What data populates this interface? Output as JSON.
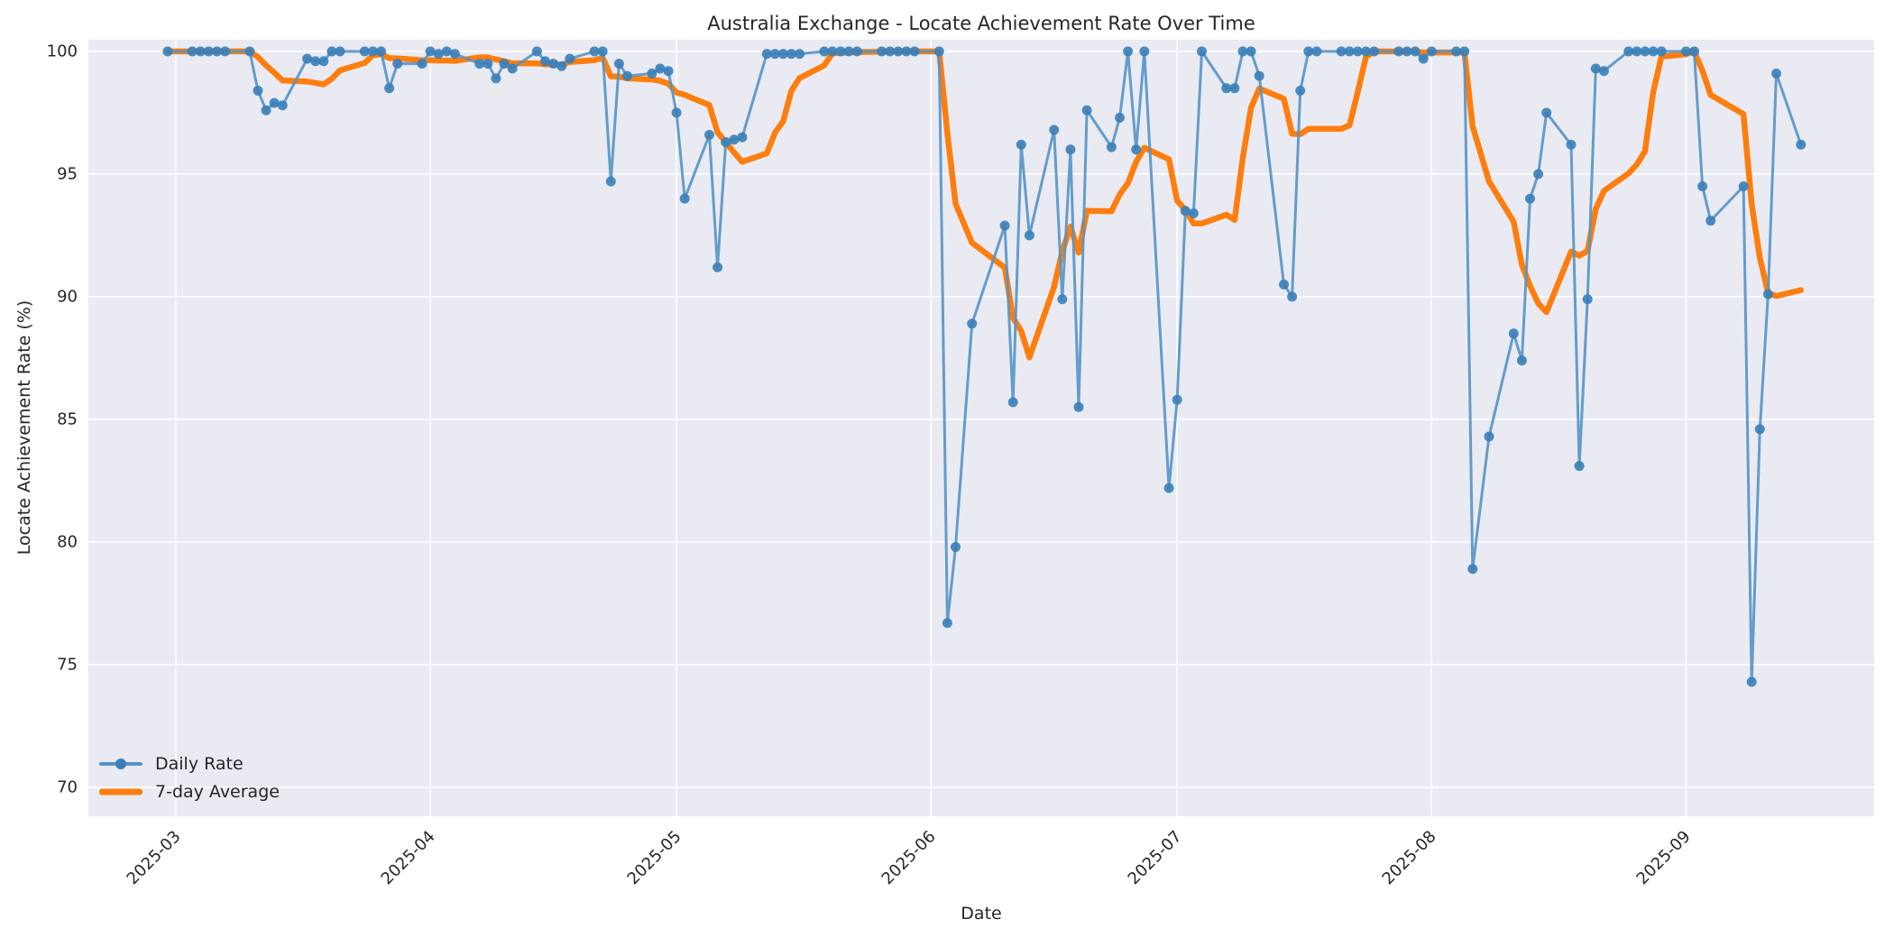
{
  "title": "Australia Exchange - Locate Achievement Rate Over Time",
  "x_axis": {
    "label": "Date",
    "ticks": [
      {
        "label": "2025-03",
        "date": "2025-03-01"
      },
      {
        "label": "2025-04",
        "date": "2025-04-01"
      },
      {
        "label": "2025-05",
        "date": "2025-05-01"
      },
      {
        "label": "2025-06",
        "date": "2025-06-01"
      },
      {
        "label": "2025-07",
        "date": "2025-07-01"
      },
      {
        "label": "2025-08",
        "date": "2025-08-01"
      },
      {
        "label": "2025-09",
        "date": "2025-09-01"
      }
    ]
  },
  "y_axis": {
    "label": "Locate Achievement Rate (%)",
    "ticks": [
      70,
      75,
      80,
      85,
      90,
      95,
      100
    ]
  },
  "legend": {
    "items": [
      {
        "label": "Daily Rate"
      },
      {
        "label": "7-day Average"
      }
    ]
  },
  "colors": {
    "plot_background": "#eaeaf2",
    "figure_background": "#ffffff",
    "gridline": "#ffffff",
    "daily_line": "#5593c5",
    "daily_marker": "#3a80b8",
    "average_line": "#fd7e0e",
    "text": "#262626"
  },
  "chart_data": {
    "type": "line",
    "title": "Australia Exchange - Locate Achievement Rate Over Time",
    "xlabel": "Date",
    "ylabel": "Locate Achievement Rate (%)",
    "ylim": [
      70,
      100
    ],
    "grid": true,
    "legend_position": "lower left",
    "series": [
      {
        "name": "Daily Rate",
        "style": "line+markers",
        "points": [
          [
            "2025-02-28",
            100
          ],
          [
            "2025-03-03",
            100
          ],
          [
            "2025-03-04",
            100
          ],
          [
            "2025-03-05",
            100
          ],
          [
            "2025-03-06",
            100
          ],
          [
            "2025-03-07",
            100
          ],
          [
            "2025-03-10",
            100
          ],
          [
            "2025-03-11",
            98.4
          ],
          [
            "2025-03-12",
            97.6
          ],
          [
            "2025-03-13",
            97.9
          ],
          [
            "2025-03-14",
            97.8
          ],
          [
            "2025-03-17",
            99.7
          ],
          [
            "2025-03-18",
            99.6
          ],
          [
            "2025-03-19",
            99.6
          ],
          [
            "2025-03-20",
            100
          ],
          [
            "2025-03-21",
            100
          ],
          [
            "2025-03-24",
            100
          ],
          [
            "2025-03-25",
            100
          ],
          [
            "2025-03-26",
            100
          ],
          [
            "2025-03-27",
            98.5
          ],
          [
            "2025-03-28",
            99.5
          ],
          [
            "2025-03-31",
            99.5
          ],
          [
            "2025-04-01",
            100
          ],
          [
            "2025-04-02",
            99.9
          ],
          [
            "2025-04-03",
            100
          ],
          [
            "2025-04-04",
            99.9
          ],
          [
            "2025-04-07",
            99.5
          ],
          [
            "2025-04-08",
            99.5
          ],
          [
            "2025-04-09",
            98.9
          ],
          [
            "2025-04-10",
            99.5
          ],
          [
            "2025-04-11",
            99.3
          ],
          [
            "2025-04-14",
            100
          ],
          [
            "2025-04-15",
            99.6
          ],
          [
            "2025-04-16",
            99.5
          ],
          [
            "2025-04-17",
            99.4
          ],
          [
            "2025-04-18",
            99.7
          ],
          [
            "2025-04-21",
            100
          ],
          [
            "2025-04-22",
            100
          ],
          [
            "2025-04-23",
            94.7
          ],
          [
            "2025-04-24",
            99.5
          ],
          [
            "2025-04-25",
            99.0
          ],
          [
            "2025-04-28",
            99.1
          ],
          [
            "2025-04-29",
            99.3
          ],
          [
            "2025-04-30",
            99.2
          ],
          [
            "2025-05-01",
            97.5
          ],
          [
            "2025-05-02",
            94.0
          ],
          [
            "2025-05-05",
            96.6
          ],
          [
            "2025-05-06",
            91.2
          ],
          [
            "2025-05-07",
            96.3
          ],
          [
            "2025-05-08",
            96.4
          ],
          [
            "2025-05-09",
            96.5
          ],
          [
            "2025-05-12",
            99.9
          ],
          [
            "2025-05-13",
            99.9
          ],
          [
            "2025-05-14",
            99.9
          ],
          [
            "2025-05-15",
            99.9
          ],
          [
            "2025-05-16",
            99.9
          ],
          [
            "2025-05-19",
            100
          ],
          [
            "2025-05-20",
            100
          ],
          [
            "2025-05-21",
            100
          ],
          [
            "2025-05-22",
            100
          ],
          [
            "2025-05-23",
            100
          ],
          [
            "2025-05-26",
            100
          ],
          [
            "2025-05-27",
            100
          ],
          [
            "2025-05-28",
            100
          ],
          [
            "2025-05-29",
            100
          ],
          [
            "2025-05-30",
            100
          ],
          [
            "2025-06-02",
            100
          ],
          [
            "2025-06-03",
            76.7
          ],
          [
            "2025-06-04",
            79.8
          ],
          [
            "2025-06-06",
            88.9
          ],
          [
            "2025-06-10",
            92.9
          ],
          [
            "2025-06-11",
            85.7
          ],
          [
            "2025-06-12",
            96.2
          ],
          [
            "2025-06-13",
            92.5
          ],
          [
            "2025-06-16",
            96.8
          ],
          [
            "2025-06-17",
            89.9
          ],
          [
            "2025-06-18",
            96.0
          ],
          [
            "2025-06-19",
            85.5
          ],
          [
            "2025-06-20",
            97.6
          ],
          [
            "2025-06-23",
            96.1
          ],
          [
            "2025-06-24",
            97.3
          ],
          [
            "2025-06-25",
            100
          ],
          [
            "2025-06-26",
            96.0
          ],
          [
            "2025-06-27",
            100
          ],
          [
            "2025-06-30",
            82.2
          ],
          [
            "2025-07-01",
            85.8
          ],
          [
            "2025-07-02",
            93.5
          ],
          [
            "2025-07-03",
            93.4
          ],
          [
            "2025-07-04",
            100
          ],
          [
            "2025-07-07",
            98.5
          ],
          [
            "2025-07-08",
            98.5
          ],
          [
            "2025-07-09",
            100
          ],
          [
            "2025-07-10",
            100
          ],
          [
            "2025-07-11",
            99.0
          ],
          [
            "2025-07-14",
            90.5
          ],
          [
            "2025-07-15",
            90.0
          ],
          [
            "2025-07-16",
            98.4
          ],
          [
            "2025-07-17",
            100
          ],
          [
            "2025-07-18",
            100
          ],
          [
            "2025-07-21",
            100
          ],
          [
            "2025-07-22",
            100
          ],
          [
            "2025-07-23",
            100
          ],
          [
            "2025-07-24",
            100
          ],
          [
            "2025-07-25",
            100
          ],
          [
            "2025-07-28",
            100
          ],
          [
            "2025-07-29",
            100
          ],
          [
            "2025-07-30",
            100
          ],
          [
            "2025-07-31",
            99.7
          ],
          [
            "2025-08-01",
            100
          ],
          [
            "2025-08-04",
            100
          ],
          [
            "2025-08-05",
            100
          ],
          [
            "2025-08-06",
            78.9
          ],
          [
            "2025-08-08",
            84.3
          ],
          [
            "2025-08-11",
            88.5
          ],
          [
            "2025-08-12",
            87.4
          ],
          [
            "2025-08-13",
            94.0
          ],
          [
            "2025-08-14",
            95.0
          ],
          [
            "2025-08-15",
            97.5
          ],
          [
            "2025-08-18",
            96.2
          ],
          [
            "2025-08-19",
            83.1
          ],
          [
            "2025-08-20",
            89.9
          ],
          [
            "2025-08-21",
            99.3
          ],
          [
            "2025-08-22",
            99.2
          ],
          [
            "2025-08-25",
            100
          ],
          [
            "2025-08-26",
            100
          ],
          [
            "2025-08-27",
            100
          ],
          [
            "2025-08-28",
            100
          ],
          [
            "2025-08-29",
            100
          ],
          [
            "2025-09-01",
            100
          ],
          [
            "2025-09-02",
            100
          ],
          [
            "2025-09-03",
            94.5
          ],
          [
            "2025-09-04",
            93.1
          ],
          [
            "2025-09-08",
            94.5
          ],
          [
            "2025-09-09",
            74.3
          ],
          [
            "2025-09-10",
            84.6
          ],
          [
            "2025-09-11",
            90.1
          ],
          [
            "2025-09-12",
            99.1
          ],
          [
            "2025-09-15",
            96.2
          ]
        ]
      },
      {
        "name": "7-day Average",
        "style": "line",
        "derived_from": "Daily Rate",
        "derivation": "rolling mean of the 7 most recent daily observations (min_periods=1)"
      }
    ]
  }
}
